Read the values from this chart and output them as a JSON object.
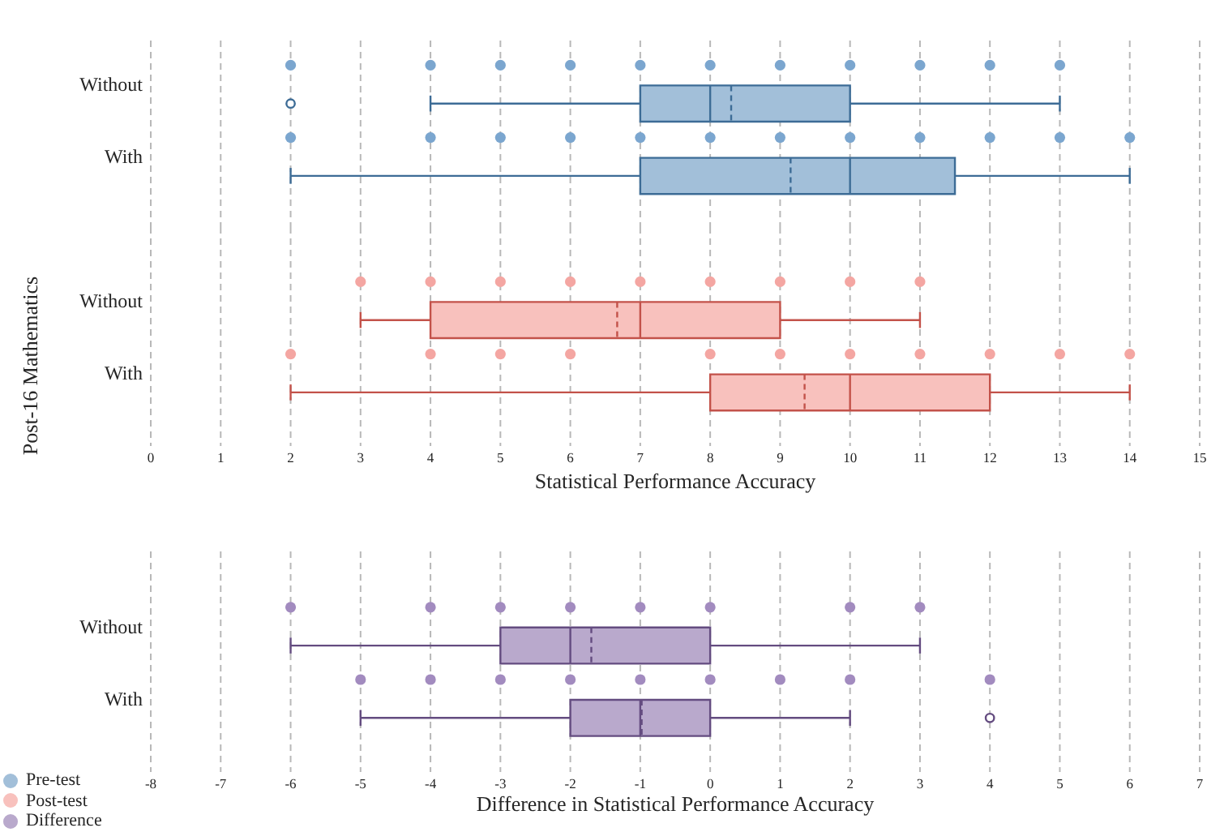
{
  "chart_data": [
    {
      "type": "box",
      "orientation": "horizontal",
      "categories": [
        "Without",
        "With"
      ],
      "series": [
        {
          "name": "Pre-test",
          "color": "#a2bfd9",
          "boxes": [
            {
              "low": 4,
              "q1": 7,
              "median": 8,
              "q3": 10,
              "high": 13,
              "mean": 8.3,
              "outliers": [
                2
              ]
            },
            {
              "low": 2,
              "q1": 7,
              "median": 10,
              "q3": 11.5,
              "high": 14,
              "mean": 9.15
            }
          ]
        },
        {
          "type": "scatter",
          "color": "#7ba6cf",
          "marker": "circle",
          "x": [
            "Without",
            "Without",
            "Without",
            "Without",
            "Without",
            "Without",
            "Without",
            "Without",
            "Without",
            "Without",
            "Without",
            "With",
            "With",
            "With",
            "With",
            "With",
            "With",
            "With",
            "With",
            "With",
            "With",
            "With",
            "With"
          ],
          "values": [
            2,
            4,
            5,
            6,
            7,
            8,
            9,
            10,
            11,
            12,
            13,
            2,
            4,
            5,
            6,
            7,
            8,
            9,
            10,
            11,
            12,
            13,
            14
          ]
        }
      ],
      "xlim": [
        0,
        15
      ],
      "xticks": [
        0,
        1,
        2,
        3,
        4,
        5,
        6,
        7,
        8,
        9,
        10,
        11,
        12,
        13,
        14,
        15
      ],
      "grid": "x",
      "tick_labels": "y",
      "legend": "bottom left"
    },
    {
      "type": "box",
      "orientation": "horizontal",
      "categories": [
        "Without",
        "With"
      ],
      "series": [
        {
          "name": "Post-test",
          "color": "#f8c1bd",
          "boxes": [
            {
              "low": 3,
              "q1": 4,
              "median": 7,
              "q3": 9,
              "high": 11,
              "mean": 6.67
            },
            {
              "low": 2,
              "q1": 8,
              "median": 10,
              "q3": 12,
              "high": 14,
              "mean": 9.35
            }
          ]
        },
        {
          "type": "scatter",
          "color": "#f4a6a2",
          "marker": "circle",
          "x": [
            "Without",
            "Without",
            "Without",
            "Without",
            "Without",
            "Without",
            "Without",
            "Without",
            "Without",
            "With",
            "With",
            "With",
            "With",
            "With",
            "With",
            "With",
            "With",
            "With",
            "With",
            "With"
          ],
          "values": [
            3,
            4,
            5,
            6,
            7,
            8,
            9,
            10,
            11,
            2,
            4,
            5,
            6,
            8,
            9,
            10,
            11,
            12,
            13,
            14
          ]
        }
      ],
      "xlim": [
        0,
        15
      ],
      "xticks": [
        0,
        1,
        2,
        3,
        4,
        5,
        6,
        7,
        8,
        9,
        10,
        11,
        12,
        13,
        14,
        15
      ],
      "xlabel": "Statistical Performance Accuracy",
      "ylabel": "Post-16 Mathematics",
      "grid": "x",
      "legend": "bottom left"
    },
    {
      "type": "box",
      "orientation": "horizontal",
      "categories": [
        "Without",
        "With"
      ],
      "series": [
        {
          "name": "Difference",
          "color": "#b9a9cc",
          "boxes": [
            {
              "low": -6,
              "q1": -3,
              "median": -2,
              "q3": 0,
              "high": 3,
              "mean": -1.7
            },
            {
              "low": -5,
              "q1": -2,
              "median": -1,
              "q3": 0,
              "high": 2,
              "mean": -0.98,
              "outliers": [
                4
              ]
            }
          ]
        },
        {
          "type": "scatter",
          "color": "#a28bbf",
          "marker": "circle",
          "x": [
            "Without",
            "Without",
            "Without",
            "Without",
            "Without",
            "Without",
            "Without",
            "Without",
            "With",
            "With",
            "With",
            "With",
            "With",
            "With",
            "With",
            "With",
            "With"
          ],
          "values": [
            -6,
            -4,
            -3,
            -2,
            -1,
            0,
            2,
            3,
            -5,
            -4,
            -3,
            -2,
            -1,
            0,
            1,
            2,
            4
          ]
        }
      ],
      "xlim": [
        -8,
        7
      ],
      "xticks": [
        -8,
        -7,
        -6,
        -5,
        -4,
        -3,
        -2,
        -1,
        0,
        1,
        2,
        3,
        4,
        5,
        6,
        7
      ],
      "xlabel": "Difference in Statistical Performance Accuracy",
      "grid": "x",
      "legend": "bottom left"
    }
  ]
}
